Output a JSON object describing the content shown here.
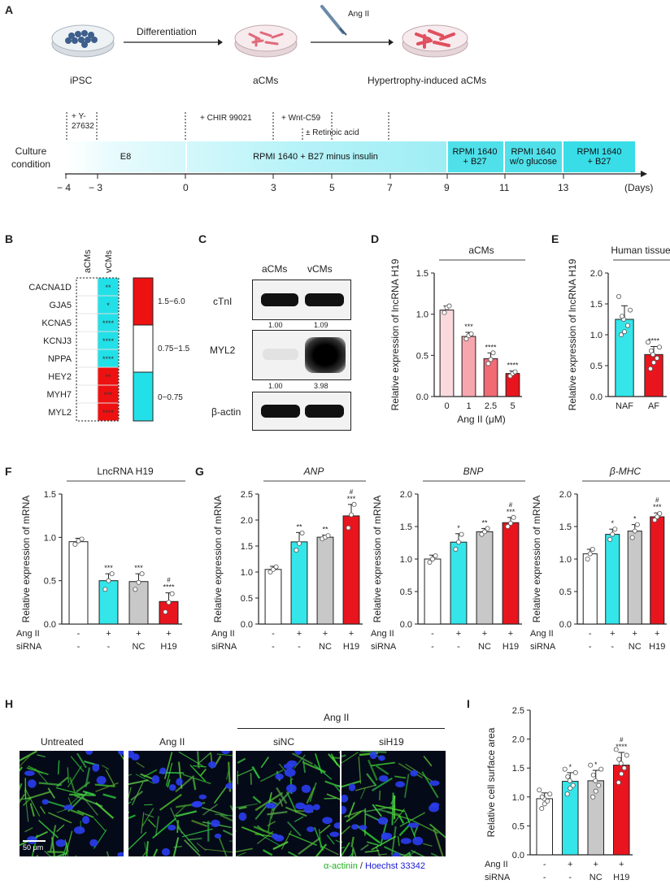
{
  "panels": {
    "A": "A",
    "B": "B",
    "C": "C",
    "D": "D",
    "E": "E",
    "F": "F",
    "G": "G",
    "H": "H",
    "I": "I"
  },
  "panel_a": {
    "stages": [
      "iPSC",
      "aCMs",
      "Hypertrophy-induced aCMs"
    ],
    "arrow1_label": "Differentiation",
    "treatment": "Ang II",
    "culture_condition": "Culture\ncondition",
    "treatments": [
      "+ Y-\n27632",
      "+ CHIR 99021",
      "+ Wnt-C59",
      "± Retinoic acid"
    ],
    "segments": [
      "E8",
      "RPMI 1640 + B27 minus insulin",
      "RPMI 1640\n+ B27",
      "RPMI 1640\nw/o glucose",
      "RPMI 1640\n+ B27"
    ],
    "ticks": [
      "− 4",
      "− 3",
      "0",
      "3",
      "5",
      "7",
      "9",
      "11",
      "13"
    ],
    "days_label": "(Days)"
  },
  "panel_b": {
    "columns": [
      "aCMs",
      "vCMs"
    ],
    "genes": [
      "CACNA1D",
      "GJA5",
      "KCNA5",
      "KCNJ3",
      "NPPA",
      "HEY2",
      "MYH7",
      "MYL2"
    ],
    "sig": [
      "**",
      "*",
      "****",
      "****",
      "****",
      "**",
      "***",
      "****"
    ],
    "legend": [
      "1.5−6.0",
      "0.75−1.5",
      "0−0.75"
    ],
    "colors": {
      "high": "#ee1111",
      "mid": "#ffffff",
      "low": "#22e0e8"
    }
  },
  "panel_c": {
    "columns": [
      "aCMs",
      "vCMs"
    ],
    "rows": [
      "cTnI",
      "MYL2",
      "β-actin"
    ],
    "cTnI_values": [
      "1.00",
      "1.09"
    ],
    "MYL2_values": [
      "1.00",
      "3.98"
    ]
  },
  "chart_data": [
    {
      "id": "D",
      "type": "bar",
      "title": "aCMs",
      "ylabel": "Relative expression of lncRNA H19",
      "xlabel": "Ang II (μM)",
      "categories": [
        "0",
        "1",
        "2.5",
        "5"
      ],
      "values": [
        1.05,
        0.73,
        0.46,
        0.28
      ],
      "errors": [
        0.05,
        0.05,
        0.07,
        0.03
      ],
      "sig": [
        "",
        "***",
        "****",
        "****"
      ],
      "colors": [
        "#fadadd",
        "#f7a6ae",
        "#f06b74",
        "#e8151e"
      ],
      "ylim": [
        0,
        1.5
      ],
      "yticks": [
        "0.0",
        "0.5",
        "1.0",
        "1.5"
      ],
      "points": [
        [
          1.02,
          1.08,
          1.1
        ],
        [
          0.7,
          0.74,
          0.76
        ],
        [
          0.4,
          0.45,
          0.53
        ],
        [
          0.25,
          0.28,
          0.3
        ]
      ]
    },
    {
      "id": "E",
      "type": "bar",
      "title": "Human tissue",
      "ylabel": "Relative expression of lncRNA H19",
      "categories": [
        "NAF",
        "AF"
      ],
      "values": [
        1.25,
        0.68
      ],
      "errors": [
        0.22,
        0.13
      ],
      "sig": [
        "",
        "****"
      ],
      "colors": [
        "#34e6ea",
        "#e8151e"
      ],
      "ylim": [
        0,
        2.0
      ],
      "yticks": [
        "0.0",
        "0.5",
        "1.0",
        "1.5",
        "2.0"
      ],
      "points": [
        [
          1.0,
          1.05,
          1.15,
          1.25,
          1.3,
          1.4,
          1.62
        ],
        [
          0.45,
          0.55,
          0.62,
          0.68,
          0.74,
          0.8,
          0.88
        ]
      ]
    },
    {
      "id": "F",
      "type": "bar",
      "title": "LncRNA H19",
      "ylabel": "Relative expression of mRNA",
      "categories": [
        "",
        "",
        "",
        ""
      ],
      "values": [
        0.95,
        0.5,
        0.49,
        0.26
      ],
      "errors": [
        0.04,
        0.08,
        0.09,
        0.1
      ],
      "sig": [
        "",
        "***",
        "***",
        "#\n****"
      ],
      "colors": [
        "#ffffff",
        "#34e6ea",
        "#c8c8c8",
        "#e8151e"
      ],
      "ylim": [
        0,
        1.5
      ],
      "yticks": [
        "0.0",
        "0.5",
        "1.0",
        "1.5"
      ],
      "angII": [
        "-",
        "+",
        "+",
        "+"
      ],
      "siRNA": [
        "-",
        "-",
        "NC",
        "H19"
      ],
      "points": [
        [
          0.92,
          0.96,
          0.98
        ],
        [
          0.4,
          0.5,
          0.58
        ],
        [
          0.4,
          0.48,
          0.58
        ],
        [
          0.14,
          0.25,
          0.35
        ]
      ]
    },
    {
      "id": "G1",
      "type": "bar",
      "title": "ANP",
      "ylabel": "Relative expression of mRNA",
      "categories": [
        "",
        "",
        "",
        ""
      ],
      "values": [
        1.05,
        1.58,
        1.67,
        2.08
      ],
      "errors": [
        0.06,
        0.18,
        0.04,
        0.22
      ],
      "sig": [
        "",
        "**",
        "**",
        "#\n***"
      ],
      "colors": [
        "#ffffff",
        "#34e6ea",
        "#c8c8c8",
        "#e8151e"
      ],
      "ylim": [
        0,
        2.5
      ],
      "yticks": [
        "0.0",
        "0.5",
        "1.0",
        "1.5",
        "2.0",
        "2.5"
      ],
      "angII": [
        "-",
        "+",
        "+",
        "+"
      ],
      "siRNA": [
        "-",
        "-",
        "NC",
        "H19"
      ],
      "points": [
        [
          1.0,
          1.05,
          1.1
        ],
        [
          1.42,
          1.55,
          1.75
        ],
        [
          1.64,
          1.67,
          1.7
        ],
        [
          1.85,
          2.1,
          2.3
        ]
      ]
    },
    {
      "id": "G2",
      "type": "bar",
      "title": "BNP",
      "ylabel": "Relative expression of mRNA",
      "categories": [
        "",
        "",
        "",
        ""
      ],
      "values": [
        1.0,
        1.26,
        1.42,
        1.56
      ],
      "errors": [
        0.06,
        0.13,
        0.05,
        0.08
      ],
      "sig": [
        "",
        "*",
        "**",
        "#\n***"
      ],
      "colors": [
        "#ffffff",
        "#34e6ea",
        "#c8c8c8",
        "#e8151e"
      ],
      "ylim": [
        0,
        2.0
      ],
      "yticks": [
        "0.0",
        "0.5",
        "1.0",
        "1.5",
        "2.0"
      ],
      "angII": [
        "-",
        "+",
        "+",
        "+"
      ],
      "siRNA": [
        "-",
        "-",
        "NC",
        "H19"
      ],
      "points": [
        [
          0.95,
          1.0,
          1.05
        ],
        [
          1.15,
          1.26,
          1.38
        ],
        [
          1.38,
          1.42,
          1.47
        ],
        [
          1.5,
          1.55,
          1.64
        ]
      ]
    },
    {
      "id": "G3",
      "type": "bar",
      "title": "β-MHC",
      "ylabel": "Relative expression of mRNA",
      "categories": [
        "",
        "",
        "",
        ""
      ],
      "values": [
        1.08,
        1.38,
        1.43,
        1.65
      ],
      "errors": [
        0.07,
        0.08,
        0.1,
        0.06
      ],
      "sig": [
        "",
        "*",
        "*",
        "#\n***"
      ],
      "colors": [
        "#ffffff",
        "#34e6ea",
        "#c8c8c8",
        "#e8151e"
      ],
      "ylim": [
        0,
        2.0
      ],
      "yticks": [
        "0.0",
        "0.5",
        "1.0",
        "1.5",
        "2.0"
      ],
      "angII": [
        "-",
        "+",
        "+",
        "+"
      ],
      "siRNA": [
        "-",
        "-",
        "NC",
        "H19"
      ],
      "points": [
        [
          1.0,
          1.08,
          1.15
        ],
        [
          1.3,
          1.38,
          1.46
        ],
        [
          1.33,
          1.43,
          1.53
        ],
        [
          1.6,
          1.65,
          1.7
        ]
      ]
    },
    {
      "id": "I",
      "type": "bar",
      "title": "",
      "ylabel": "Relative cell surface area",
      "categories": [
        "",
        "",
        "",
        ""
      ],
      "values": [
        0.97,
        1.27,
        1.28,
        1.55
      ],
      "errors": [
        0.1,
        0.15,
        0.18,
        0.22
      ],
      "sig": [
        "",
        "*",
        "*",
        "#\n****"
      ],
      "colors": [
        "#ffffff",
        "#34e6ea",
        "#c8c8c8",
        "#e8151e"
      ],
      "ylim": [
        0,
        2.5
      ],
      "yticks": [
        "0.0",
        "0.5",
        "1.0",
        "1.5",
        "2.0",
        "2.5"
      ],
      "angII": [
        "-",
        "+",
        "+",
        "+"
      ],
      "siRNA": [
        "-",
        "-",
        "NC",
        "H19"
      ],
      "points": [
        [
          0.8,
          0.88,
          0.93,
          0.97,
          1.0,
          1.05,
          1.12
        ],
        [
          1.05,
          1.15,
          1.2,
          1.28,
          1.35,
          1.42,
          1.48
        ],
        [
          1.0,
          1.1,
          1.2,
          1.28,
          1.38,
          1.48,
          1.55
        ],
        [
          1.25,
          1.4,
          1.5,
          1.58,
          1.65,
          1.72,
          1.82
        ]
      ]
    }
  ],
  "row_labels": {
    "angII": "Ang II",
    "siRNA": "siRNA"
  },
  "panel_h": {
    "labels": [
      "Untreated",
      "Ang II",
      "siNC",
      "siH19"
    ],
    "group_label": "Ang II",
    "scale_bar": "50 μm",
    "stain1": "α-actinin",
    "sep": " / ",
    "stain2": "Hoechst 33342"
  }
}
